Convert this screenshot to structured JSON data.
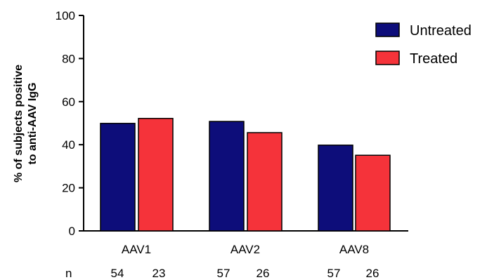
{
  "chart_data": {
    "type": "bar",
    "categories": [
      "AAV1",
      "AAV2",
      "AAV8"
    ],
    "series": [
      {
        "name": "Untreated",
        "values": [
          49.9,
          50.8,
          39.8
        ],
        "n": [
          "54",
          "57",
          "57"
        ],
        "color": "#0d0d7a"
      },
      {
        "name": "Treated",
        "values": [
          52.2,
          45.6,
          35.1
        ],
        "n": [
          "23",
          "26",
          "26"
        ],
        "color": "#f5333a"
      }
    ],
    "ylabel_lines": [
      "% of subjects positive",
      "to anti-AAV IgG"
    ],
    "yticks": [
      "0",
      "20",
      "40",
      "60",
      "80",
      "100"
    ],
    "ylim": [
      0,
      100
    ],
    "n_label": "n",
    "legend_position": "top-right",
    "grid": false
  }
}
